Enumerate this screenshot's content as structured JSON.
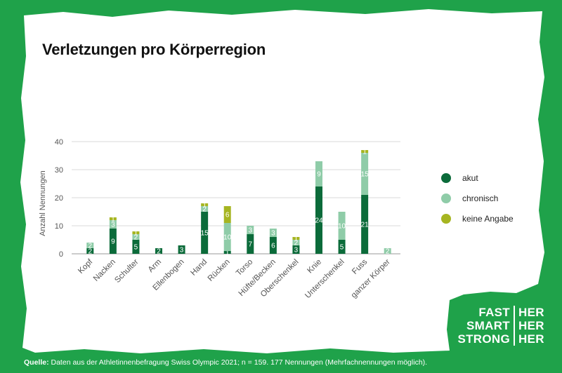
{
  "title": "Verletzungen pro Körperregion",
  "colors": {
    "akut": "#0b6b3a",
    "chronisch": "#8fcca8",
    "keine_angabe": "#a6b521",
    "background": "#1fa24a"
  },
  "legend": [
    {
      "label": "akut",
      "color": "#0b6b3a"
    },
    {
      "label": "chronisch",
      "color": "#8fcca8"
    },
    {
      "label": "keine Angabe",
      "color": "#a6b521"
    }
  ],
  "chart_data": {
    "type": "bar",
    "stacked": true,
    "ylabel": "Anzahl Nennungen",
    "ylim": [
      0,
      40
    ],
    "yticks": [
      0,
      10,
      20,
      30,
      40
    ],
    "grid": true,
    "legend_position": "right",
    "categories": [
      "Kopf",
      "Nacken",
      "Schulter",
      "Arm",
      "Ellenbogen",
      "Hand",
      "Rücken",
      "Torso",
      "Hüfte/Becken",
      "Oberschenkel",
      "Knie",
      "Unterschenkel",
      "Fuss",
      "ganzer Körper"
    ],
    "series": [
      {
        "name": "akut",
        "values": [
          2,
          9,
          5,
          2,
          3,
          15,
          1,
          7,
          6,
          3,
          24,
          5,
          21,
          0
        ]
      },
      {
        "name": "chronisch",
        "values": [
          2,
          3,
          2,
          0,
          0,
          2,
          10,
          3,
          3,
          2,
          9,
          10,
          15,
          2
        ]
      },
      {
        "name": "keine Angabe",
        "values": [
          0,
          1,
          1,
          0,
          0,
          1,
          6,
          0,
          0,
          1,
          0,
          0,
          1,
          0
        ]
      }
    ]
  },
  "brand": {
    "rows": [
      {
        "left": "FAST",
        "right": "HER"
      },
      {
        "left": "SMART",
        "right": "HER"
      },
      {
        "left": "STRONG",
        "right": "HER"
      }
    ]
  },
  "source": {
    "label": "Quelle:",
    "text": " Daten aus der Athletinnenbefragung Swiss Olympic 2021; n = 159. 177 Nennungen (Mehrfachnennungen möglich)."
  }
}
